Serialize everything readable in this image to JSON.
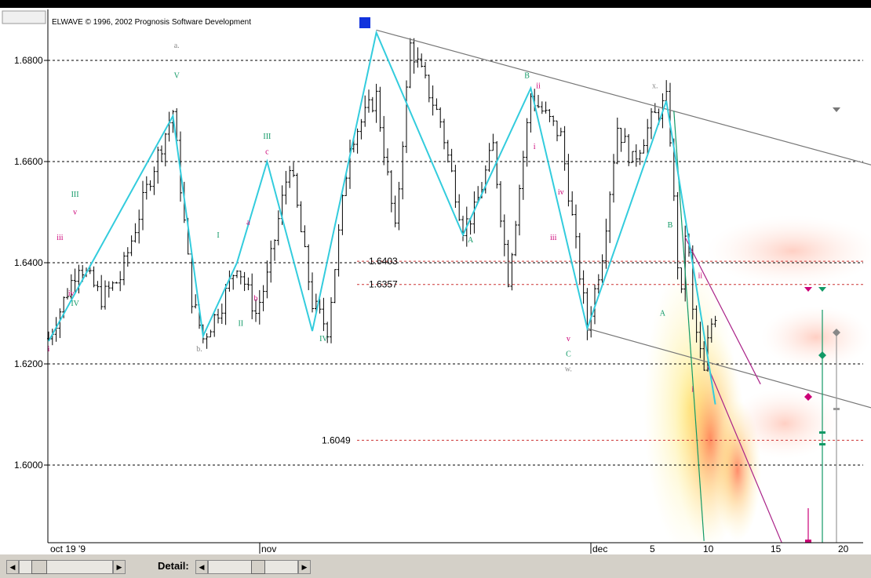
{
  "copyright": "ELWAVE © 1996, 2002 Prognosis Software Development",
  "controls": {
    "detail_label": "Detail:",
    "left_arrow": "◀",
    "right_arrow": "▶"
  },
  "colors": {
    "zigzag": "#33ccdd",
    "green_label": "#119966",
    "magenta_label": "#cc0077",
    "gray_label": "#888888",
    "ref_red": "#cc3333",
    "marker_blue": "#1133dd"
  },
  "chart_data": {
    "type": "candlestick",
    "ylim": [
      1.585,
      1.69
    ],
    "y_ticks": [
      "1.6800",
      "1.6600",
      "1.6400",
      "1.6200",
      "1.6000"
    ],
    "y_tick_values": [
      1.68,
      1.66,
      1.64,
      1.62,
      1.6
    ],
    "x_labels": [
      "oct 19 '9",
      "nov",
      "dec",
      "5",
      "10",
      "15",
      "20"
    ],
    "price_levels": [
      {
        "label": "1.6403",
        "value": 1.6403
      },
      {
        "label": "1.6357",
        "value": 1.6357
      },
      {
        "label": "1.6049",
        "value": 1.6049
      }
    ],
    "close_path": [
      [
        0,
        1.625
      ],
      [
        8,
        1.64
      ],
      [
        14,
        1.633
      ],
      [
        19,
        1.637
      ],
      [
        27,
        1.657
      ],
      [
        33,
        1.67
      ],
      [
        38,
        1.633
      ],
      [
        41,
        1.625
      ],
      [
        46,
        1.632
      ],
      [
        50,
        1.64
      ],
      [
        55,
        1.63
      ],
      [
        58,
        1.637
      ],
      [
        64,
        1.66
      ],
      [
        70,
        1.632
      ],
      [
        74,
        1.627
      ],
      [
        80,
        1.664
      ],
      [
        87,
        1.673
      ],
      [
        92,
        1.646
      ],
      [
        96,
        1.683
      ],
      [
        104,
        1.668
      ],
      [
        110,
        1.647
      ],
      [
        113,
        1.65
      ],
      [
        118,
        1.663
      ],
      [
        122,
        1.637
      ],
      [
        128,
        1.673
      ],
      [
        136,
        1.665
      ],
      [
        143,
        1.627
      ],
      [
        147,
        1.642
      ],
      [
        151,
        1.667
      ],
      [
        155,
        1.66
      ],
      [
        160,
        1.668
      ],
      [
        164,
        1.672
      ]
    ],
    "zigzag": [
      [
        0,
        1.6245
      ],
      [
        33,
        1.669
      ],
      [
        41,
        1.6255
      ],
      [
        50,
        1.64
      ],
      [
        58,
        1.66
      ],
      [
        70,
        1.6265
      ],
      [
        87,
        1.6855
      ],
      [
        110,
        1.6455
      ],
      [
        128,
        1.6745
      ],
      [
        143,
        1.627
      ],
      [
        164,
        1.672
      ],
      [
        177,
        1.612
      ]
    ],
    "trendlines": [
      {
        "from": [
          87,
          1.686
        ],
        "to": [
          220,
          1.659
        ],
        "color": "#777777"
      },
      {
        "from": [
          143,
          1.627
        ],
        "to": [
          220,
          1.611
        ],
        "color": "#777777"
      },
      {
        "from": [
          169,
          1.645
        ],
        "to": [
          189,
          1.616
        ],
        "color": "#aa2288"
      },
      {
        "from": [
          175,
          1.6195
        ],
        "to": [
          195,
          1.584
        ],
        "color": "#aa2288"
      },
      {
        "from": [
          166,
          1.67
        ],
        "to": [
          174,
          1.585
        ],
        "color": "#119966"
      }
    ],
    "wave_labels": [
      {
        "t": "i",
        "x": 0,
        "y": 1.6225,
        "c": "magenta"
      },
      {
        "t": "iii",
        "x": 3,
        "y": 1.6445,
        "c": "magenta"
      },
      {
        "t": "iv",
        "x": 6,
        "y": 1.6335,
        "c": "magenta"
      },
      {
        "t": "IV",
        "x": 7,
        "y": 1.6315,
        "c": "green"
      },
      {
        "t": "v",
        "x": 7,
        "y": 1.6495,
        "c": "magenta"
      },
      {
        "t": "III",
        "x": 7,
        "y": 1.653,
        "c": "green"
      },
      {
        "t": "a.",
        "x": 34,
        "y": 1.6825,
        "c": "gray"
      },
      {
        "t": "V",
        "x": 34,
        "y": 1.6765,
        "c": "green"
      },
      {
        "t": "b.",
        "x": 40,
        "y": 1.6225,
        "c": "gray"
      },
      {
        "t": "II",
        "x": 51,
        "y": 1.6275,
        "c": "green"
      },
      {
        "t": "b",
        "x": 55,
        "y": 1.6325,
        "c": "magenta"
      },
      {
        "t": "I",
        "x": 45,
        "y": 1.645,
        "c": "green"
      },
      {
        "t": "a",
        "x": 53,
        "y": 1.6475,
        "c": "magenta"
      },
      {
        "t": "III",
        "x": 58,
        "y": 1.6645,
        "c": "green"
      },
      {
        "t": "c",
        "x": 58,
        "y": 1.6615,
        "c": "magenta"
      },
      {
        "t": "IV",
        "x": 73,
        "y": 1.6245,
        "c": "green"
      },
      {
        "t": "A",
        "x": 112,
        "y": 1.644,
        "c": "green"
      },
      {
        "t": "B",
        "x": 127,
        "y": 1.6765,
        "c": "green"
      },
      {
        "t": "ii",
        "x": 130,
        "y": 1.6745,
        "c": "magenta"
      },
      {
        "t": "i",
        "x": 129,
        "y": 1.6625,
        "c": "magenta"
      },
      {
        "t": "iv",
        "x": 136,
        "y": 1.6535,
        "c": "magenta"
      },
      {
        "t": "iii",
        "x": 134,
        "y": 1.6445,
        "c": "magenta"
      },
      {
        "t": "v",
        "x": 138,
        "y": 1.6245,
        "c": "magenta"
      },
      {
        "t": "C",
        "x": 138,
        "y": 1.6215,
        "c": "green"
      },
      {
        "t": "w.",
        "x": 138,
        "y": 1.6185,
        "c": "gray"
      },
      {
        "t": "x.",
        "x": 161,
        "y": 1.6745,
        "c": "gray"
      },
      {
        "t": "B",
        "x": 165,
        "y": 1.647,
        "c": "green"
      },
      {
        "t": "A",
        "x": 163,
        "y": 1.6295,
        "c": "green"
      },
      {
        "t": "ii",
        "x": 173,
        "y": 1.637,
        "c": "magenta"
      },
      {
        "t": "i",
        "x": 171,
        "y": 1.6145,
        "c": "magenta"
      }
    ]
  }
}
